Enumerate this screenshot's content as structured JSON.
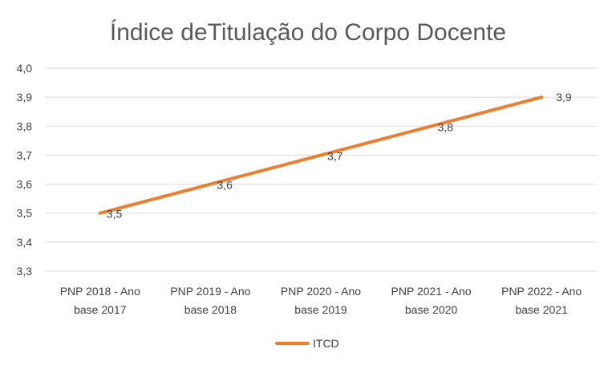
{
  "chart_data": {
    "type": "line",
    "title": "Índice deTitulação do Corpo Docente",
    "categories": [
      [
        "PNP 2018 - Ano",
        "base 2017"
      ],
      [
        "PNP 2019 - Ano",
        "base 2018"
      ],
      [
        "PNP 2020 - Ano",
        "base 2019"
      ],
      [
        "PNP 2021 - Ano",
        "base 2020"
      ],
      [
        "PNP 2022 - Ano",
        "base 2021"
      ]
    ],
    "series": [
      {
        "name": "ITCD",
        "color": "#ed7d31",
        "values": [
          3.5,
          3.6,
          3.7,
          3.8,
          3.9
        ],
        "labels": [
          "3,5",
          "3,6",
          "3,7",
          "3,8",
          "3,9"
        ]
      }
    ],
    "ylim": [
      3.3,
      4.0
    ],
    "yticks": [
      3.3,
      3.4,
      3.5,
      3.6,
      3.7,
      3.8,
      3.9,
      4.0
    ],
    "ytick_labels": [
      "3,3",
      "3,4",
      "3,5",
      "3,6",
      "3,7",
      "3,8",
      "3,9",
      "4,0"
    ],
    "grid": true,
    "legend_position": "bottom",
    "xlabel": "",
    "ylabel": ""
  }
}
